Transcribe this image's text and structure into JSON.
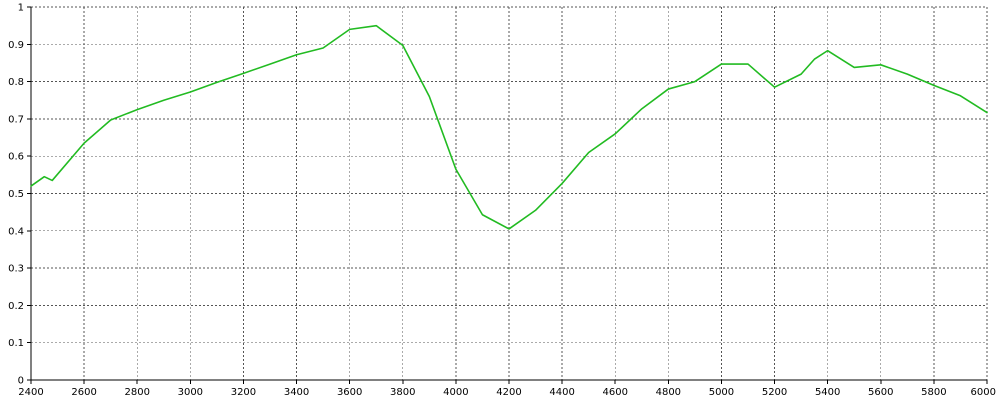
{
  "chart_data": {
    "type": "line",
    "title": "",
    "xlabel": "",
    "ylabel": "",
    "xlim": [
      2400,
      6000
    ],
    "ylim": [
      0,
      1
    ],
    "grid": true,
    "x_ticks": [
      2400,
      2600,
      2800,
      3000,
      3200,
      3400,
      3600,
      3800,
      4000,
      4200,
      4400,
      4600,
      4800,
      5000,
      5200,
      5400,
      5600,
      5800,
      6000
    ],
    "y_ticks": [
      0,
      0.1,
      0.2,
      0.3,
      0.4,
      0.5,
      0.6,
      0.7,
      0.8,
      0.9,
      1
    ],
    "x_tick_labels": [
      "2400",
      "2600",
      "2800",
      "3000",
      "3200",
      "3400",
      "3600",
      "3800",
      "4000",
      "4200",
      "4400",
      "4600",
      "4800",
      "5000",
      "5200",
      "5400",
      "5600",
      "5800",
      "6000"
    ],
    "y_tick_labels": [
      "0",
      "0.1",
      "0.2",
      "0.3",
      "0.4",
      "0.5",
      "0.6",
      "0.7",
      "0.8",
      "0.9",
      "1"
    ],
    "series": [
      {
        "color": "#22bb22",
        "x": [
          2400,
          2450,
          2480,
          2600,
          2700,
          2800,
          2900,
          3000,
          3100,
          3200,
          3300,
          3400,
          3500,
          3600,
          3700,
          3800,
          3900,
          4000,
          4100,
          4200,
          4300,
          4400,
          4500,
          4600,
          4700,
          4800,
          4900,
          5000,
          5100,
          5200,
          5300,
          5350,
          5400,
          5500,
          5600,
          5700,
          5800,
          5900,
          6000
        ],
        "y": [
          0.52,
          0.545,
          0.535,
          0.635,
          0.697,
          0.725,
          0.75,
          0.772,
          0.798,
          0.822,
          0.847,
          0.872,
          0.89,
          0.94,
          0.95,
          0.897,
          0.76,
          0.565,
          0.443,
          0.405,
          0.455,
          0.527,
          0.61,
          0.66,
          0.727,
          0.78,
          0.8,
          0.847,
          0.847,
          0.785,
          0.82,
          0.86,
          0.883,
          0.838,
          0.845,
          0.82,
          0.79,
          0.762,
          0.717
        ]
      }
    ]
  }
}
